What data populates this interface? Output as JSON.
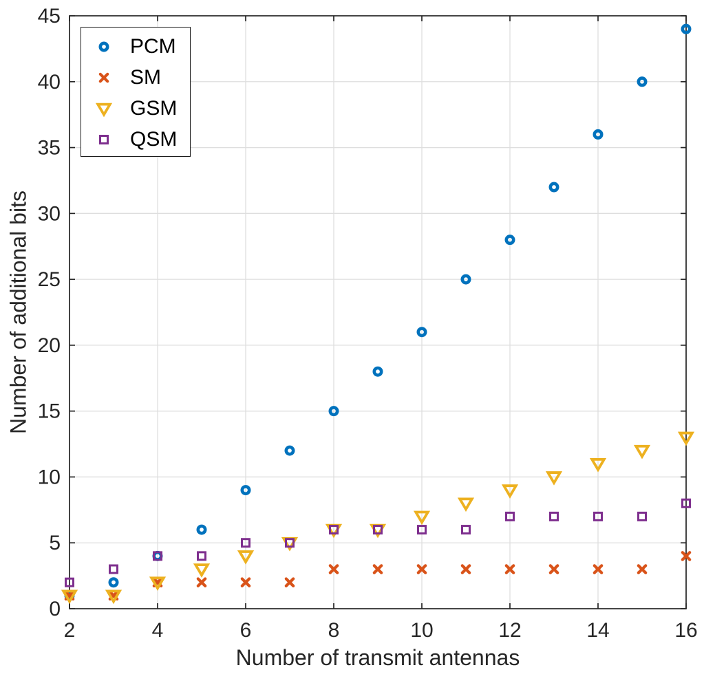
{
  "chart_data": {
    "type": "scatter",
    "title": "",
    "xlabel": "Number of transmit antennas",
    "ylabel": "Number of additional bits",
    "x": [
      2,
      3,
      4,
      5,
      6,
      7,
      8,
      9,
      10,
      11,
      12,
      13,
      14,
      15,
      16
    ],
    "series": [
      {
        "name": "PCM",
        "marker": "circle",
        "color": "#0072BD",
        "values": [
          1,
          2,
          4,
          6,
          9,
          12,
          15,
          18,
          21,
          25,
          28,
          32,
          36,
          40,
          44
        ]
      },
      {
        "name": "SM",
        "marker": "x",
        "color": "#D95319",
        "values": [
          1,
          1,
          2,
          2,
          2,
          2,
          3,
          3,
          3,
          3,
          3,
          3,
          3,
          3,
          4
        ]
      },
      {
        "name": "GSM",
        "marker": "triangle-down",
        "color": "#EDB120",
        "values": [
          1,
          1,
          2,
          3,
          4,
          5,
          6,
          6,
          7,
          8,
          9,
          10,
          11,
          12,
          13
        ]
      },
      {
        "name": "QSM",
        "marker": "square",
        "color": "#7E2F8E",
        "values": [
          2,
          3,
          4,
          4,
          5,
          5,
          6,
          6,
          6,
          6,
          7,
          7,
          7,
          7,
          8
        ]
      }
    ],
    "xlim": [
      2,
      16
    ],
    "ylim": [
      0,
      45
    ],
    "xticks": [
      2,
      4,
      6,
      8,
      10,
      12,
      14,
      16
    ],
    "yticks": [
      0,
      5,
      10,
      15,
      20,
      25,
      30,
      35,
      40,
      45
    ],
    "grid": true,
    "legend_position": "top-left",
    "axis_color": "#262626",
    "grid_color": "#dedede",
    "background": "#ffffff"
  }
}
